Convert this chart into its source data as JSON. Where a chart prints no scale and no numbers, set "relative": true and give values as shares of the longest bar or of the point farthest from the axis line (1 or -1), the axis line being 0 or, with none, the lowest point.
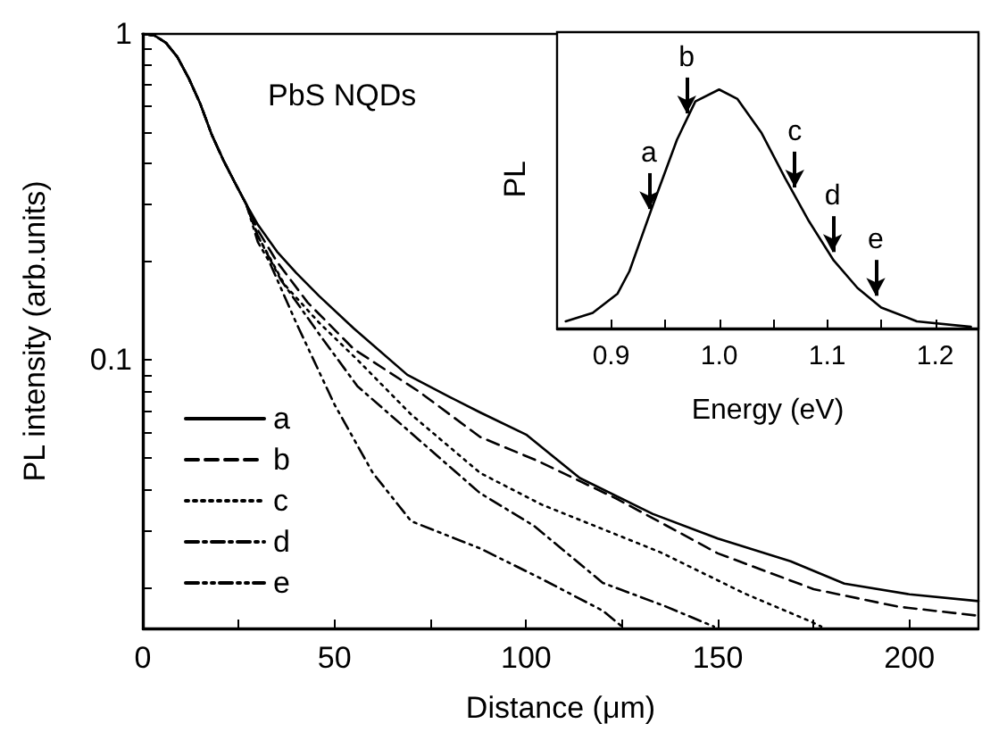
{
  "chart_data": [
    {
      "type": "line",
      "xlabel": "Distance (μm)",
      "ylabel": "PL intensity (arb.units)",
      "log": "y",
      "xlim": [
        0,
        218
      ],
      "ylim": [
        0.015,
        1
      ],
      "xticks": [
        0,
        {
          "value": 25,
          "label": null
        },
        50,
        {
          "value": 75,
          "label": null
        },
        100,
        {
          "value": 125,
          "label": null
        },
        150,
        {
          "value": 175,
          "label": null
        },
        200
      ],
      "yticks": [
        {
          "value": 0.02,
          "label": null
        },
        {
          "value": 0.03,
          "label": null
        },
        {
          "value": 0.04,
          "label": null
        },
        {
          "value": 0.05,
          "label": null
        },
        {
          "value": 0.06,
          "label": null
        },
        {
          "value": 0.07,
          "label": null
        },
        {
          "value": 0.08,
          "label": null
        },
        {
          "value": 0.09,
          "label": null
        },
        0.1,
        {
          "value": 0.2,
          "label": null
        },
        {
          "value": 0.3,
          "label": null
        },
        {
          "value": 0.4,
          "label": null
        },
        {
          "value": 0.5,
          "label": null
        },
        {
          "value": 0.6,
          "label": null
        },
        {
          "value": 0.7,
          "label": null
        },
        {
          "value": 0.8,
          "label": null
        },
        {
          "value": 0.9,
          "label": null
        },
        1
      ],
      "legend": "bottom left",
      "grid": false,
      "annotations": [
        "PbS NQDs"
      ],
      "series": [
        {
          "name": "a",
          "color": "#000000",
          "line_style": "solid",
          "x": [
            0,
            3,
            6,
            9,
            12,
            15,
            18,
            21,
            24,
            27,
            30,
            35,
            40,
            46,
            55,
            69,
            80,
            88,
            100,
            114,
            133,
            150,
            169,
            183,
            200,
            218
          ],
          "values": [
            1,
            0.99,
            0.94,
            0.85,
            0.73,
            0.61,
            0.49,
            0.41,
            0.35,
            0.3,
            0.26,
            0.215,
            0.185,
            0.157,
            0.125,
            0.09,
            0.077,
            0.069,
            0.059,
            0.0434,
            0.0337,
            0.0283,
            0.0241,
            0.0206,
            0.0191,
            0.0182
          ]
        },
        {
          "name": "b",
          "color": "#000000",
          "line_style": "dashed",
          "x": [
            0,
            3,
            6,
            9,
            12,
            15,
            18,
            21,
            24,
            27,
            30,
            35,
            43,
            55,
            72,
            88,
            103,
            124,
            150,
            175,
            197,
            218
          ],
          "values": [
            1,
            0.99,
            0.94,
            0.85,
            0.73,
            0.61,
            0.49,
            0.41,
            0.35,
            0.3,
            0.25,
            0.2,
            0.15,
            0.108,
            0.08,
            0.058,
            0.049,
            0.0373,
            0.0255,
            0.0198,
            0.0175,
            0.0164
          ]
        },
        {
          "name": "c",
          "color": "#000000",
          "line_style": "dotted",
          "x": [
            0,
            3,
            6,
            9,
            12,
            15,
            18,
            21,
            24,
            27,
            30,
            37,
            46,
            56,
            70,
            88,
            104,
            135,
            157,
            174,
            177
          ],
          "values": [
            1,
            0.99,
            0.94,
            0.85,
            0.73,
            0.61,
            0.49,
            0.41,
            0.35,
            0.3,
            0.24,
            0.17,
            0.13,
            0.1,
            0.068,
            0.045,
            0.036,
            0.0257,
            0.0192,
            0.0158,
            0.0152
          ]
        },
        {
          "name": "d",
          "color": "#000000",
          "line_style": "dashdot",
          "x": [
            0,
            3,
            6,
            9,
            12,
            15,
            18,
            21,
            24,
            27,
            30,
            36,
            46,
            56,
            75,
            88,
            102,
            120,
            136,
            149
          ],
          "values": [
            1,
            0.99,
            0.94,
            0.85,
            0.73,
            0.61,
            0.49,
            0.41,
            0.35,
            0.3,
            0.24,
            0.176,
            0.12,
            0.083,
            0.053,
            0.039,
            0.031,
            0.0207,
            0.0176,
            0.0152
          ]
        },
        {
          "name": "e",
          "color": "#000000",
          "line_style": "dashdotdot",
          "x": [
            0,
            3,
            6,
            9,
            12,
            15,
            18,
            21,
            24,
            27,
            30,
            33,
            40,
            50,
            60,
            70,
            88,
            104,
            120,
            125
          ],
          "values": [
            1,
            0.99,
            0.94,
            0.85,
            0.73,
            0.61,
            0.49,
            0.41,
            0.35,
            0.3,
            0.23,
            0.2,
            0.13,
            0.073,
            0.045,
            0.032,
            0.0264,
            0.0213,
            0.017,
            0.0152
          ]
        }
      ]
    },
    {
      "type": "line",
      "xlabel": "Energy (eV)",
      "ylabel": "PL",
      "relative": true,
      "tick_labels": "x",
      "grid": false,
      "legend": false,
      "xlim": [
        0.85,
        1.24
      ],
      "xticks": [
        0.9,
        {
          "value": 0.95,
          "label": null
        },
        {
          "value": 1,
          "label": "1.0"
        },
        {
          "value": 1.05,
          "label": null
        },
        1.1,
        {
          "value": 1.15,
          "label": null
        },
        1.2
      ],
      "series": [
        {
          "color": "#000000",
          "line_style": "solid",
          "x": [
            0.858,
            0.883,
            0.906,
            0.917,
            0.939,
            0.961,
            0.978,
            1.0,
            1.017,
            1.039,
            1.061,
            1.083,
            1.106,
            1.128,
            1.15,
            1.183,
            1.233
          ],
          "values": [
            0.03,
            0.065,
            0.146,
            0.24,
            0.52,
            0.79,
            0.95,
            1,
            0.96,
            0.82,
            0.63,
            0.45,
            0.285,
            0.17,
            0.088,
            0.03,
            0.007
          ]
        }
      ],
      "annotations": [
        {
          "text": "a",
          "x": 0.935,
          "y": 0.47
        },
        {
          "text": "b",
          "x": 0.97,
          "y": 0.87
        },
        {
          "text": "c",
          "x": 1.07,
          "y": 0.56
        },
        {
          "text": "d",
          "x": 1.105,
          "y": 0.29
        },
        {
          "text": "e",
          "x": 1.145,
          "y": 0.107
        }
      ]
    }
  ]
}
